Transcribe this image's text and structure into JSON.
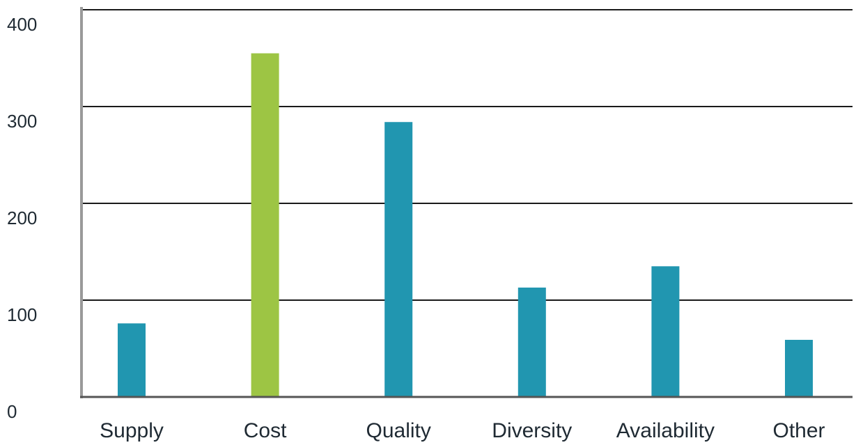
{
  "chart_data": {
    "type": "bar",
    "title": "",
    "xlabel": "",
    "ylabel": "",
    "categories": [
      "Supply",
      "Cost",
      "Quality",
      "Diversity",
      "Availability",
      "Other"
    ],
    "values": [
      76,
      355,
      284,
      113,
      135,
      59
    ],
    "highlight_index": 1,
    "ylim": [
      0,
      400
    ],
    "yticks": [
      0,
      100,
      200,
      300,
      400
    ],
    "grid": true,
    "legend": "none",
    "colors": {
      "bar": "#2196b0",
      "highlight": "#9dc544",
      "grid": "#1a1a1a",
      "axis": "#9a9a9a",
      "baseline": "#555555"
    }
  }
}
